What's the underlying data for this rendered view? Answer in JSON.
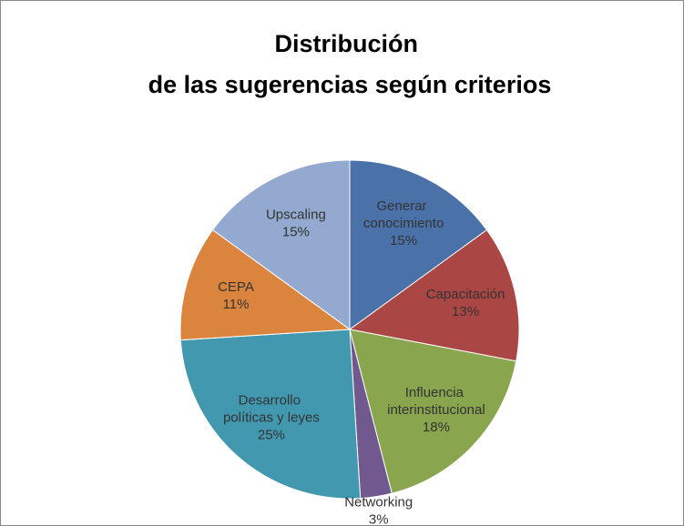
{
  "chart_data": {
    "type": "pie",
    "title": "Distribución de las sugerencias según criterios",
    "categories": [
      "Generar conocimiento",
      "Capacitación",
      "Influencia interinstitucional",
      "Networking",
      "Desarrollo políticas y leyes",
      "CEPA",
      "Upscaling"
    ],
    "values": [
      15,
      13,
      18,
      3,
      25,
      11,
      15
    ],
    "value_labels": [
      "15%",
      "13%",
      "18%",
      "3%",
      "25%",
      "11%",
      "15%"
    ],
    "colors": [
      "#4a72a8",
      "#aa4643",
      "#89a54e",
      "#71588f",
      "#4198af",
      "#db843d",
      "#93a9cf"
    ]
  }
}
